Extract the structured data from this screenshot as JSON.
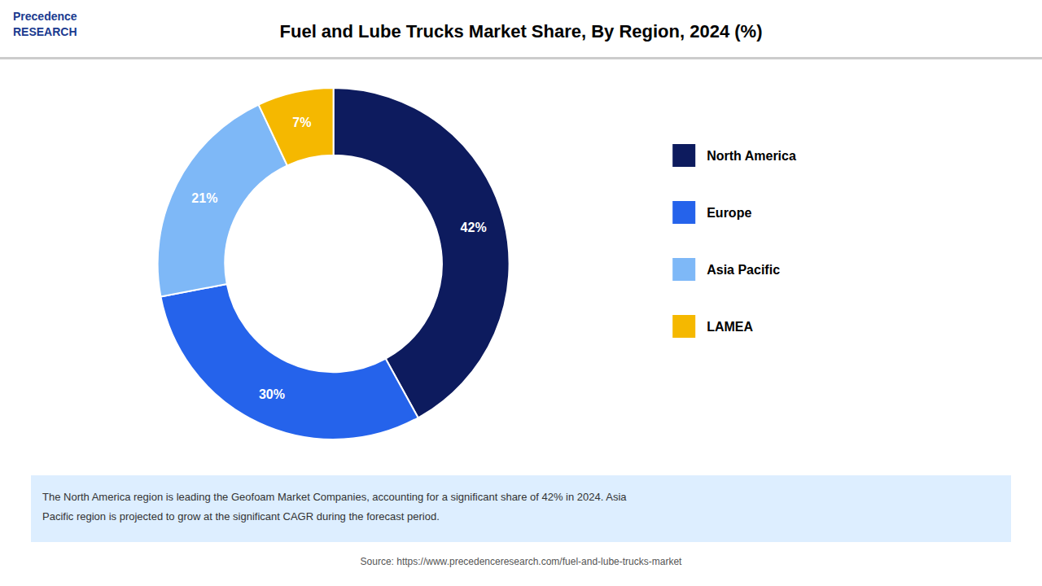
{
  "chart_data": {
    "type": "pie",
    "title": "Fuel and Lube Trucks Market Share, By Region, 2024 (%)",
    "categories": [
      "North America",
      "Europe",
      "Asia Pacific",
      "LAMEA"
    ],
    "values": [
      42,
      30,
      21,
      7
    ],
    "value_labels": [
      "42%",
      "30%",
      "21%",
      "7%"
    ],
    "colors": [
      "#0d1b5e",
      "#2563eb",
      "#7eb8f7",
      "#f5b800"
    ],
    "data_labels": true,
    "legend": "right",
    "annotations": [
      "Precedence\nRESEARCH",
      "The North America region is leading the Geofoam Market Companies, accounting for a significant share of 42% in 2024. Asia\nPacific region is projected to grow at the significant CAGR during the forecast period.",
      "Source: https://www.precedenceresearch.com/fuel-and-lube-trucks-market"
    ]
  }
}
